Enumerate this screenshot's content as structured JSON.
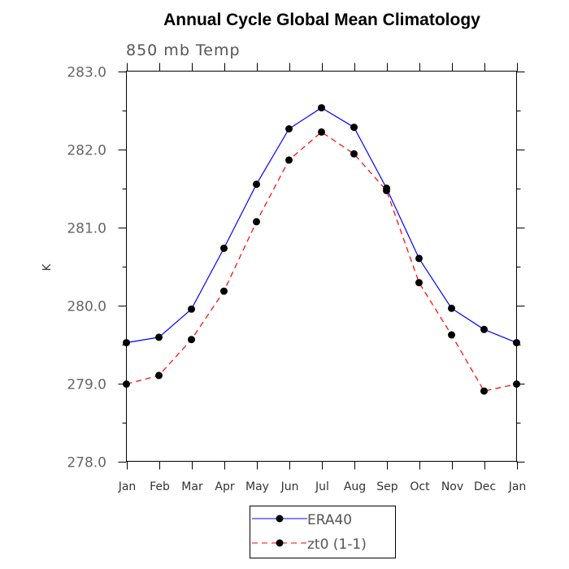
{
  "chart_data": {
    "type": "line",
    "title": "Annual Cycle Global Mean Climatology",
    "subtitle": "850 mb Temp",
    "xlabel": "",
    "ylabel": "K",
    "ylim": [
      278.0,
      283.0
    ],
    "yticks": [
      "278.0",
      "279.0",
      "280.0",
      "281.0",
      "282.0",
      "283.0"
    ],
    "categories": [
      "Jan",
      "Feb",
      "Mar",
      "Apr",
      "May",
      "Jun",
      "Jul",
      "Aug",
      "Sep",
      "Oct",
      "Nov",
      "Dec",
      "Jan"
    ],
    "series": [
      {
        "name": "ERA40",
        "color": "#0000ff",
        "dash": "solid",
        "values": [
          279.52,
          279.59,
          279.95,
          280.73,
          281.55,
          282.26,
          282.53,
          282.28,
          281.5,
          280.6,
          279.96,
          279.69,
          279.52
        ]
      },
      {
        "name": "zt0 (1-1)",
        "color": "#ff0000",
        "dash": "dashed",
        "values": [
          278.99,
          279.1,
          279.56,
          280.18,
          281.07,
          281.86,
          282.22,
          281.94,
          281.47,
          280.29,
          279.62,
          278.9,
          278.99
        ]
      }
    ],
    "legend": {
      "position": "bottom-center"
    }
  }
}
